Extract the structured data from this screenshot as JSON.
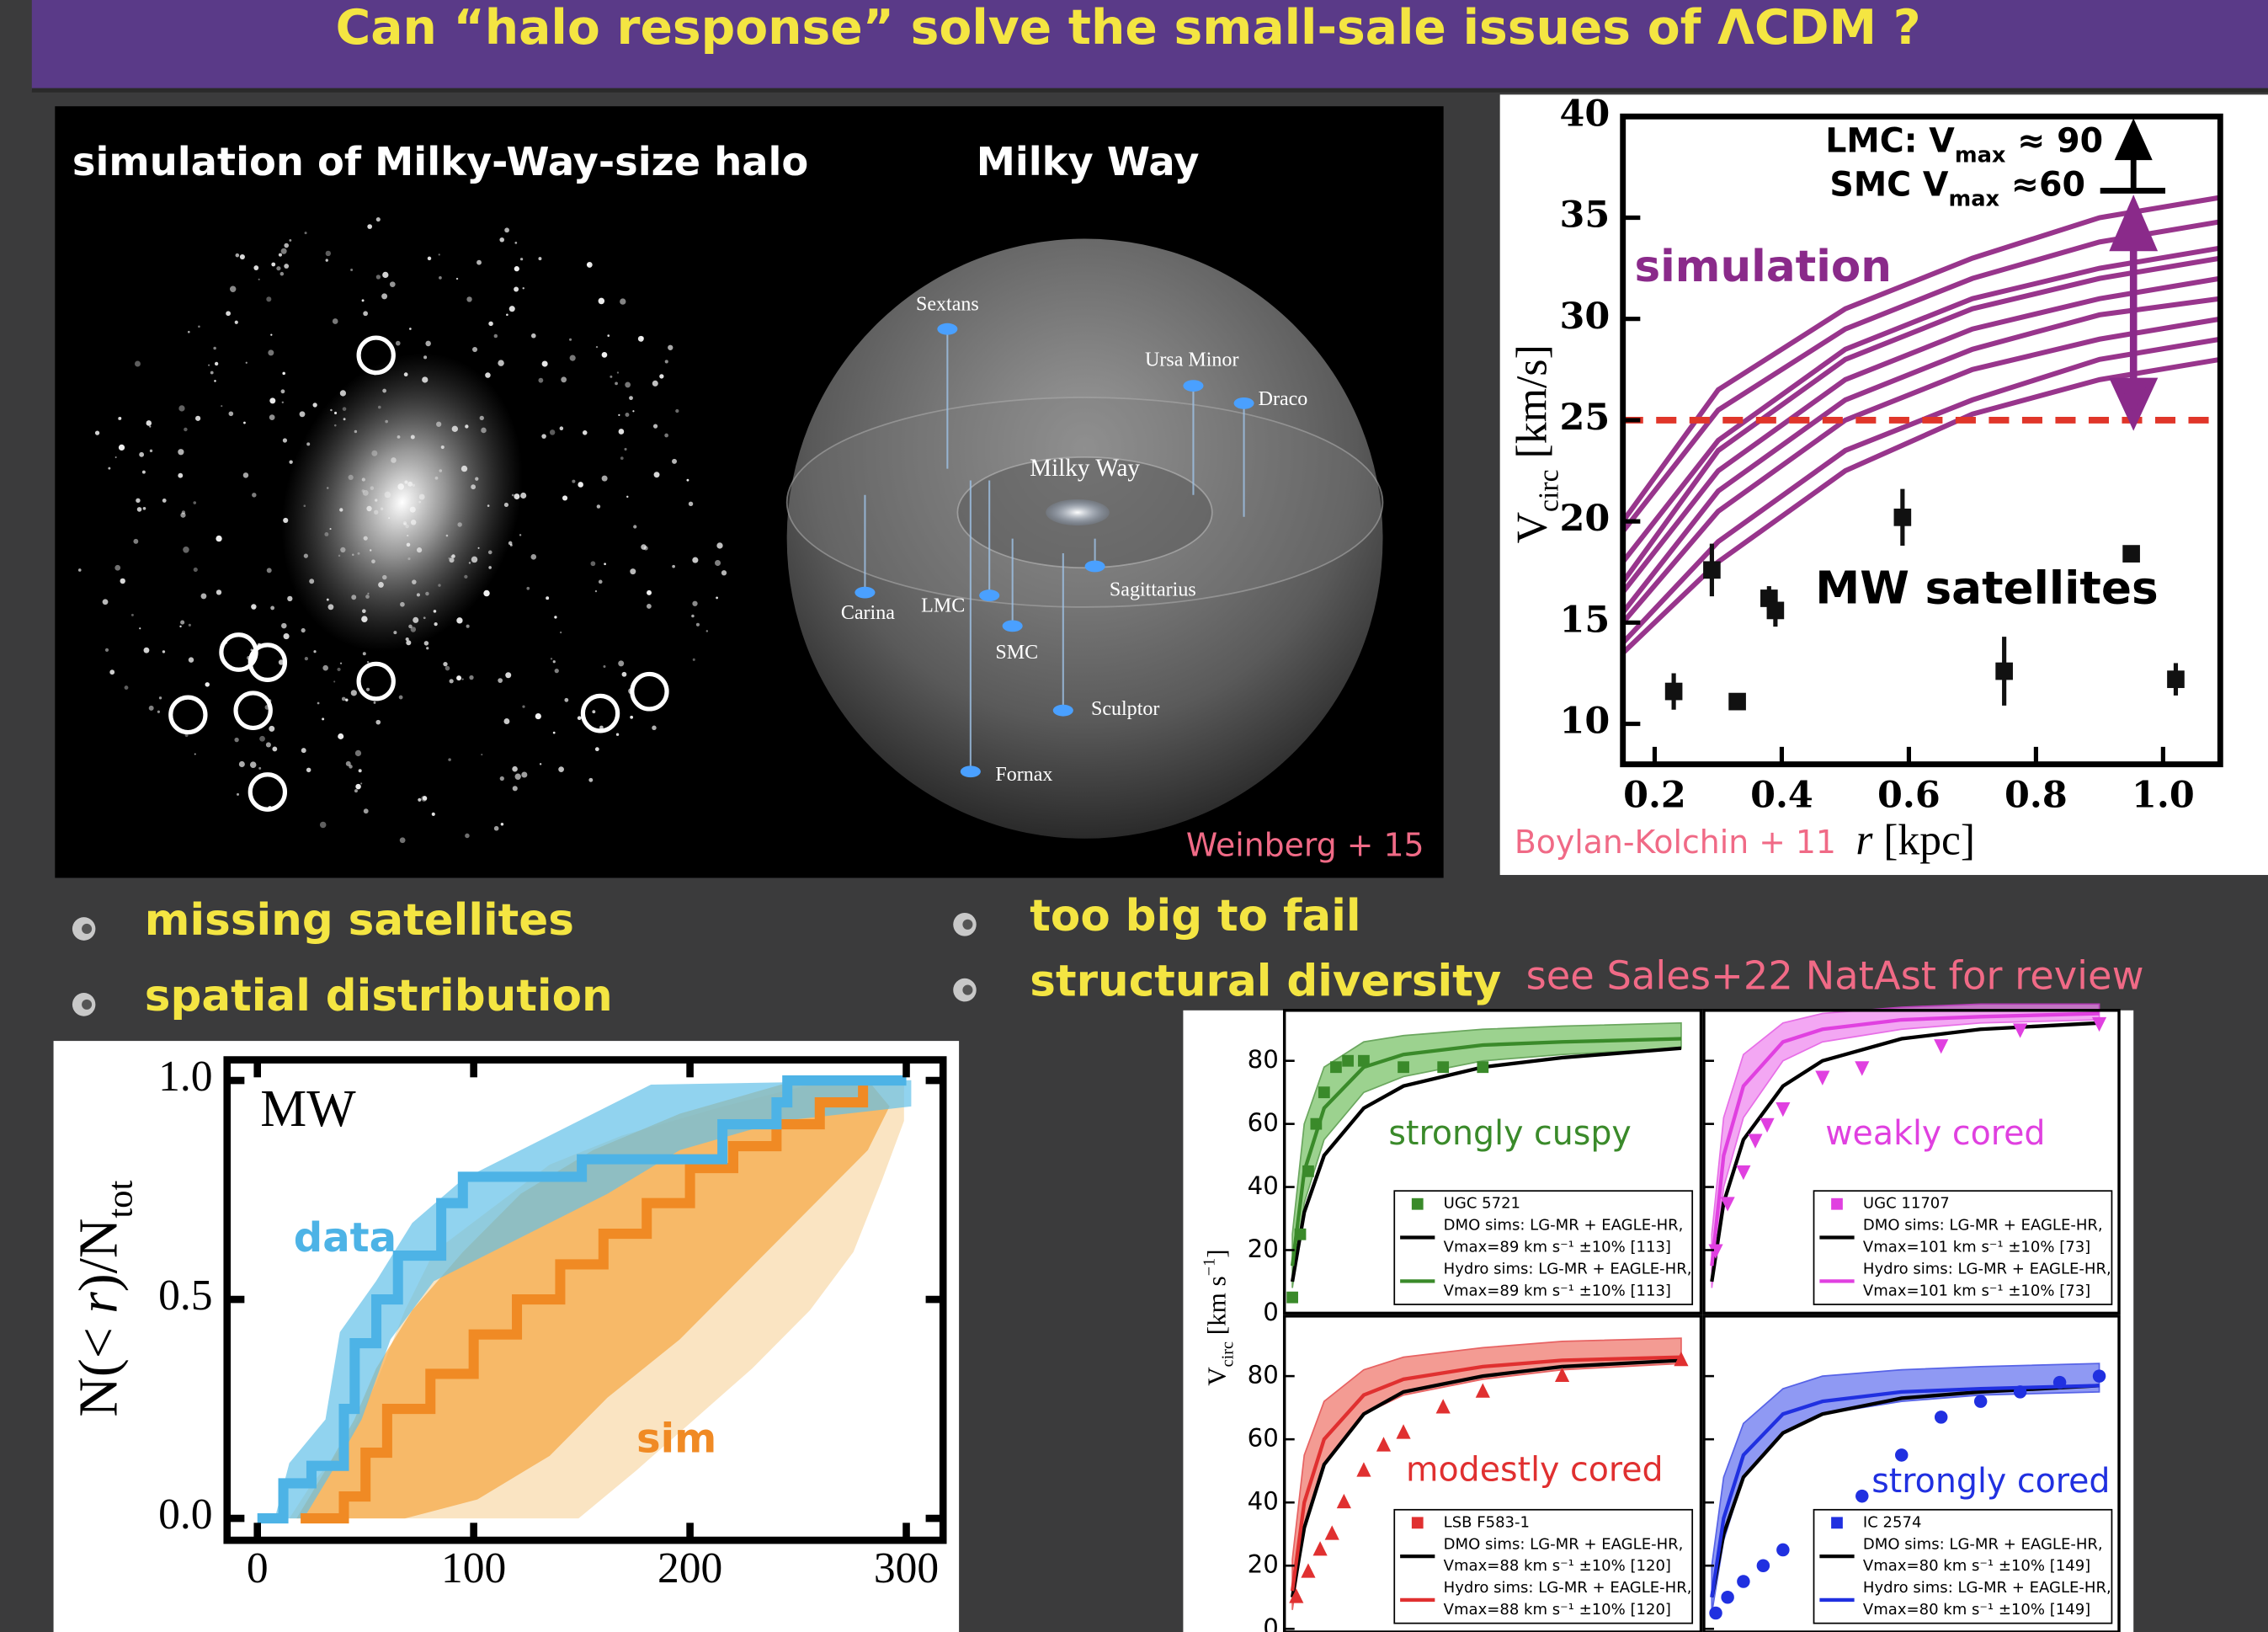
{
  "header": {
    "title": "Can “halo response” solve the small-sale issues of ΛCDM ?"
  },
  "image_panel": {
    "left_title": "simulation of Milky-Way-size halo",
    "right_title": "Milky Way",
    "labels": [
      "Sextans",
      "Ursa Minor",
      "Draco",
      "Milky Way",
      "Carina",
      "LMC",
      "Sagittarius",
      "SMC",
      "Sculptor",
      "Fornax"
    ],
    "credit": "Weinberg + 15"
  },
  "bullets": {
    "left": [
      "missing satellites",
      "spatial distribution"
    ],
    "right": [
      "too big to fail",
      "structural diversity"
    ],
    "note": "see Sales+22 NatAst for review"
  },
  "chart_data": [
    {
      "type": "scatter",
      "x": [
        0.23,
        0.29,
        0.33,
        0.38,
        0.39,
        0.59,
        0.75,
        0.95,
        1.02
      ],
      "values": [
        11.6,
        17.6,
        11.1,
        16.2,
        15.6,
        20.2,
        12.6,
        18.4,
        12.2
      ],
      "errors": [
        0.9,
        1.3,
        0.4,
        0.6,
        0.8,
        1.4,
        1.7,
        0.4,
        0.8
      ],
      "color": "#111111",
      "xlim": [
        0.15,
        1.09
      ],
      "ylim": [
        8,
        40
      ],
      "xticks": [
        0.2,
        0.4,
        0.6,
        0.8,
        {
          "value": 1,
          "label": "1.0"
        }
      ],
      "yticks": [
        10,
        15,
        20,
        25,
        30,
        35,
        40
      ],
      "xlabel": [
        "r",
        " [kpc]"
      ],
      "ylabel": [
        "V",
        "circ",
        " [km/s]"
      ],
      "threshold": 25,
      "threshold_color": "#e0362a",
      "curves": {
        "color": "#98358c",
        "x": [
          0.15,
          0.3,
          0.5,
          0.7,
          0.9,
          1.09
        ],
        "series": [
          [
            20,
            26.5,
            30.5,
            33,
            35,
            36
          ],
          [
            19.5,
            25.5,
            29.5,
            32,
            33.8,
            34.8
          ],
          [
            18,
            24,
            28.5,
            31,
            32.5,
            33.5
          ],
          [
            17,
            23.5,
            28,
            30.5,
            32,
            33
          ],
          [
            16.5,
            22.5,
            27,
            29.5,
            31,
            32
          ],
          [
            15.5,
            21.5,
            26,
            28.5,
            30.2,
            31
          ],
          [
            15,
            20.5,
            25,
            27.5,
            29,
            30
          ],
          [
            14,
            19,
            23.5,
            26,
            28,
            29
          ],
          [
            13.5,
            18,
            22.5,
            25.3,
            27,
            28
          ]
        ]
      },
      "annotations": {
        "simulation": "simulation",
        "satellites": "MW satellites",
        "lmc": [
          "LMC: V",
          "max",
          " ≈ 90"
        ],
        "smc": [
          "SMC V",
          "max",
          " ≈60"
        ],
        "credit": "Boylan-Kolchin + 11"
      }
    },
    {
      "type": "step",
      "xlim": [
        -14,
        317
      ],
      "ylim": [
        -0.05,
        1.047
      ],
      "xticks": [
        0,
        100,
        200,
        300
      ],
      "yticks": [
        {
          "value": 0,
          "label": "0.0"
        },
        {
          "value": 0.5,
          "label": "0.5"
        },
        {
          "value": 1,
          "label": "1.0"
        }
      ],
      "ylabel": [
        "N(< ",
        "r",
        ")/N",
        "tot"
      ],
      "label": "MW",
      "series": [
        {
          "name": "data",
          "color": "#4db3e6",
          "x": [
            0,
            12,
            25,
            40,
            45,
            55,
            65,
            85,
            95,
            130,
            150,
            190,
            215,
            240,
            245,
            300
          ],
          "values": [
            0,
            0.08,
            0.12,
            0.25,
            0.4,
            0.5,
            0.6,
            0.72,
            0.78,
            0.78,
            0.82,
            0.82,
            0.9,
            0.95,
            1,
            1
          ]
        },
        {
          "name": "sim",
          "color": "#f08a24",
          "x": [
            20,
            40,
            50,
            60,
            80,
            100,
            120,
            140,
            160,
            180,
            200,
            220,
            240,
            260,
            280
          ],
          "values": [
            0,
            0.05,
            0.15,
            0.25,
            0.33,
            0.42,
            0.5,
            0.58,
            0.65,
            0.72,
            0.8,
            0.85,
            0.9,
            0.95,
            1
          ]
        }
      ]
    },
    {
      "type": "rotation-curves",
      "ylabel": [
        "V",
        "circ",
        " [km s",
        "−1",
        "]"
      ],
      "yticks": [
        0,
        20,
        40,
        60,
        80
      ],
      "xlim": [
        0,
        10.5
      ],
      "x": [
        0.2,
        0.5,
        1,
        2,
        3,
        5,
        7,
        10
      ],
      "dmo_color": "#000000",
      "panels": [
        {
          "title": "strongly cuspy",
          "color": "#3a8a2a",
          "band_color": "#7cc46a",
          "marker": "square",
          "ylim": [
            0,
            96
          ],
          "legend": [
            "UGC 5721",
            "DMO sims: LG-MR + EAGLE-HR,",
            "Vmax=89 km s⁻¹  ±10% [113]",
            "Hydro sims: LG-MR + EAGLE-HR,",
            "Vmax=89 km s⁻¹  ±10% [113]"
          ],
          "hydro": [
            15,
            45,
            65,
            78,
            82,
            85,
            86,
            87
          ],
          "band_low": [
            8,
            35,
            55,
            70,
            75,
            80,
            82,
            84
          ],
          "band_high": [
            25,
            60,
            78,
            86,
            88,
            90,
            91,
            92
          ],
          "dmo": [
            10,
            32,
            50,
            65,
            72,
            78,
            81,
            84
          ],
          "obs": {
            "x": [
              0.2,
              0.4,
              0.6,
              0.8,
              1,
              1.3,
              1.6,
              2,
              3,
              4,
              5
            ],
            "values": [
              5,
              25,
              45,
              60,
              70,
              78,
              80,
              80,
              78,
              78,
              78
            ]
          }
        },
        {
          "title": "weakly cored",
          "color": "#e040e0",
          "band_color": "#f08af0",
          "marker": "triangle-down",
          "ylim": [
            0,
            96
          ],
          "legend": [
            "UGC 11707",
            "DMO sims: LG-MR + EAGLE-HR,",
            "Vmax=101 km s⁻¹  ±10% [73]",
            "Hydro sims: LG-MR + EAGLE-HR,",
            "Vmax=101 km s⁻¹  ±10% [73]"
          ],
          "hydro": [
            15,
            50,
            72,
            86,
            90,
            93,
            94,
            95
          ],
          "band_low": [
            8,
            40,
            62,
            80,
            86,
            90,
            92,
            93
          ],
          "band_high": [
            25,
            62,
            82,
            92,
            95,
            97,
            98,
            98
          ],
          "dmo": [
            10,
            35,
            55,
            72,
            80,
            87,
            90,
            92
          ],
          "obs": {
            "x": [
              0.3,
              0.6,
              1,
              1.3,
              1.6,
              2,
              3,
              4,
              6,
              8,
              10
            ],
            "values": [
              20,
              35,
              45,
              55,
              60,
              65,
              75,
              78,
              85,
              90,
              92
            ]
          }
        },
        {
          "title": "modestly cored",
          "color": "#e03030",
          "band_color": "#f07a70",
          "marker": "triangle",
          "ylim": [
            -1,
            99
          ],
          "legend": [
            "LSB F583-1",
            "DMO sims: LG-MR + EAGLE-HR,",
            "Vmax=88 km s⁻¹  ±10% [120]",
            "Hydro sims: LG-MR + EAGLE-HR,",
            "Vmax=88 km s⁻¹  ±10% [120]"
          ],
          "hydro": [
            12,
            40,
            60,
            74,
            79,
            83,
            85,
            86
          ],
          "band_low": [
            6,
            32,
            52,
            68,
            74,
            79,
            82,
            84
          ],
          "band_high": [
            22,
            55,
            72,
            82,
            86,
            89,
            91,
            92
          ],
          "dmo": [
            10,
            32,
            52,
            68,
            75,
            80,
            83,
            85
          ],
          "obs": {
            "x": [
              0.3,
              0.6,
              0.9,
              1.2,
              1.5,
              2,
              2.5,
              3,
              4,
              5,
              7,
              10
            ],
            "values": [
              10,
              18,
              25,
              30,
              40,
              50,
              58,
              62,
              70,
              75,
              80,
              85
            ]
          }
        },
        {
          "title": "strongly cored",
          "color": "#2030e0",
          "band_color": "#6a78f0",
          "marker": "circle",
          "ylim": [
            -1,
            99
          ],
          "legend": [
            "IC 2574",
            "DMO sims: LG-MR + EAGLE-HR,",
            "Vmax=80 km s⁻¹  ±10% [149]",
            "Hydro sims: LG-MR + EAGLE-HR,",
            "Vmax=80 km s⁻¹  ±10% [149]"
          ],
          "hydro": [
            10,
            35,
            55,
            68,
            72,
            75,
            76,
            77
          ],
          "band_low": [
            5,
            28,
            48,
            62,
            68,
            72,
            74,
            75
          ],
          "band_high": [
            20,
            48,
            65,
            76,
            80,
            82,
            83,
            84
          ],
          "dmo": [
            10,
            30,
            48,
            62,
            68,
            73,
            75,
            77
          ],
          "obs": {
            "x": [
              0.3,
              0.6,
              1,
              1.5,
              2,
              3,
              4,
              5,
              6,
              7,
              8,
              9,
              10
            ],
            "values": [
              5,
              10,
              15,
              20,
              25,
              33,
              42,
              55,
              67,
              72,
              75,
              78,
              80
            ]
          }
        }
      ]
    }
  ]
}
